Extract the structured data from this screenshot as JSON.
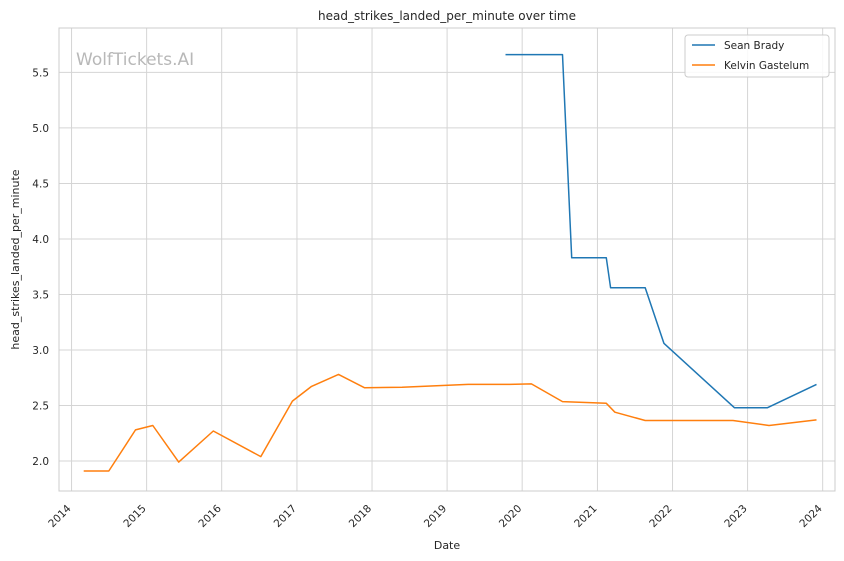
{
  "watermark": "WolfTickets.AI",
  "chart_data": {
    "type": "line",
    "title": "head_strikes_landed_per_minute over time",
    "xlabel": "Date",
    "ylabel": "head_strikes_landed_per_minute",
    "xlim": [
      "2013-11-01",
      "2024-03-01"
    ],
    "ylim": [
      1.73,
      5.9
    ],
    "xticks": [
      "2014",
      "2015",
      "2016",
      "2017",
      "2018",
      "2019",
      "2020",
      "2021",
      "2022",
      "2023",
      "2024"
    ],
    "yticks": [
      2.0,
      2.5,
      3.0,
      3.5,
      4.0,
      4.5,
      5.0,
      5.5
    ],
    "ytick_labels": [
      "2.0",
      "2.5",
      "3.0",
      "3.5",
      "4.0",
      "4.5",
      "5.0",
      "5.5"
    ],
    "grid": true,
    "legend_position": "top-right",
    "series": [
      {
        "name": "Sean Brady",
        "color": "#1f77b4",
        "points": [
          {
            "x": "2019-10-12",
            "y": 5.66
          },
          {
            "x": "2020-07-15",
            "y": 5.66
          },
          {
            "x": "2020-08-29",
            "y": 3.83
          },
          {
            "x": "2021-02-13",
            "y": 3.83
          },
          {
            "x": "2021-03-06",
            "y": 3.56
          },
          {
            "x": "2021-08-21",
            "y": 3.56
          },
          {
            "x": "2021-11-20",
            "y": 3.06
          },
          {
            "x": "2022-10-29",
            "y": 2.48
          },
          {
            "x": "2023-04-08",
            "y": 2.48
          },
          {
            "x": "2023-12-02",
            "y": 2.69
          }
        ]
      },
      {
        "name": "Kelvin Gastelum",
        "color": "#ff7f0e",
        "points": [
          {
            "x": "2014-03-01",
            "y": 1.91
          },
          {
            "x": "2014-07-01",
            "y": 1.91
          },
          {
            "x": "2014-11-08",
            "y": 2.28
          },
          {
            "x": "2015-01-31",
            "y": 2.32
          },
          {
            "x": "2015-06-06",
            "y": 1.99
          },
          {
            "x": "2015-11-21",
            "y": 2.27
          },
          {
            "x": "2016-07-09",
            "y": 2.04
          },
          {
            "x": "2016-12-10",
            "y": 2.54
          },
          {
            "x": "2017-03-11",
            "y": 2.67
          },
          {
            "x": "2017-07-22",
            "y": 2.78
          },
          {
            "x": "2017-11-25",
            "y": 2.66
          },
          {
            "x": "2018-05-27",
            "y": 2.665
          },
          {
            "x": "2019-04-13",
            "y": 2.69
          },
          {
            "x": "2019-11-02",
            "y": 2.69
          },
          {
            "x": "2020-02-15",
            "y": 2.695
          },
          {
            "x": "2020-07-15",
            "y": 2.535
          },
          {
            "x": "2021-02-13",
            "y": 2.52
          },
          {
            "x": "2021-03-27",
            "y": 2.44
          },
          {
            "x": "2021-08-21",
            "y": 2.365
          },
          {
            "x": "2022-10-22",
            "y": 2.365
          },
          {
            "x": "2023-04-15",
            "y": 2.32
          },
          {
            "x": "2023-12-02",
            "y": 2.37
          }
        ]
      }
    ]
  }
}
